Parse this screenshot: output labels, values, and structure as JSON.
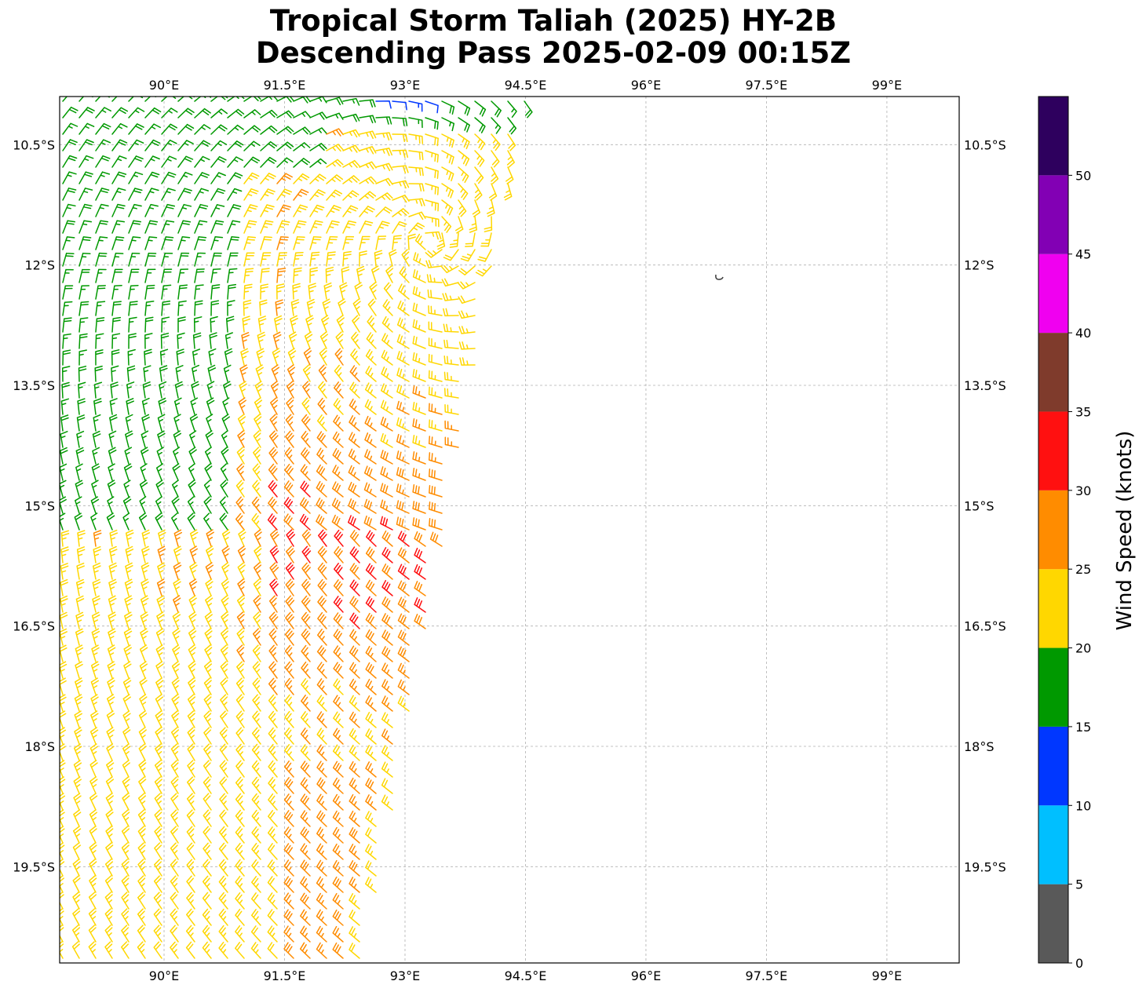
{
  "title": {
    "line1": "Tropical Storm Taliah (2025) HY-2B",
    "line2": "Descending Pass 2025-02-09 00:15Z"
  },
  "map": {
    "lon_range": [
      88.7,
      99.9
    ],
    "lat_range": [
      -20.7,
      -9.9
    ],
    "lon_ticks": [
      {
        "value": 90.0,
        "label": "90°E"
      },
      {
        "value": 91.5,
        "label": "91.5°E"
      },
      {
        "value": 93.0,
        "label": "93°E"
      },
      {
        "value": 94.5,
        "label": "94.5°E"
      },
      {
        "value": 96.0,
        "label": "96°E"
      },
      {
        "value": 97.5,
        "label": "97.5°E"
      },
      {
        "value": 99.0,
        "label": "99°E"
      }
    ],
    "lat_ticks": [
      {
        "value": -10.5,
        "label": "10.5°S"
      },
      {
        "value": -12.0,
        "label": "12°S"
      },
      {
        "value": -13.5,
        "label": "13.5°S"
      },
      {
        "value": -15.0,
        "label": "15°S"
      },
      {
        "value": -16.5,
        "label": "16.5°S"
      },
      {
        "value": -18.0,
        "label": "18°S"
      },
      {
        "value": -19.5,
        "label": "19.5°S"
      }
    ],
    "grid": true,
    "storm_center": {
      "lon": 93.3,
      "lat": -11.7
    },
    "swath": {
      "east_edge_top_lon": 94.5,
      "east_edge_bottom_lon": 92.5
    },
    "colors": {
      "grid": "#b0b0b0",
      "island": "#444444"
    }
  },
  "colorbar": {
    "label": "Wind Speed (knots)",
    "ticks": [
      {
        "value": 0,
        "label": "0"
      },
      {
        "value": 5,
        "label": "5"
      },
      {
        "value": 10,
        "label": "10"
      },
      {
        "value": 15,
        "label": "15"
      },
      {
        "value": 20,
        "label": "20"
      },
      {
        "value": 25,
        "label": "25"
      },
      {
        "value": 30,
        "label": "30"
      },
      {
        "value": 35,
        "label": "35"
      },
      {
        "value": 40,
        "label": "40"
      },
      {
        "value": 45,
        "label": "45"
      },
      {
        "value": 50,
        "label": "50"
      }
    ],
    "bins": [
      {
        "from": 0,
        "to": 5,
        "color": "#595959"
      },
      {
        "from": 5,
        "to": 10,
        "color": "#00bfff"
      },
      {
        "from": 10,
        "to": 15,
        "color": "#0037ff"
      },
      {
        "from": 15,
        "to": 20,
        "color": "#009900"
      },
      {
        "from": 20,
        "to": 25,
        "color": "#ffd700"
      },
      {
        "from": 25,
        "to": 30,
        "color": "#ff8c00"
      },
      {
        "from": 30,
        "to": 35,
        "color": "#ff1010"
      },
      {
        "from": 35,
        "to": 40,
        "color": "#7f3b2c"
      },
      {
        "from": 40,
        "to": 45,
        "color": "#f000f0"
      },
      {
        "from": 45,
        "to": 50,
        "color": "#8200b4"
      },
      {
        "from": 50,
        "to": 55,
        "color": "#2e005e"
      }
    ]
  }
}
